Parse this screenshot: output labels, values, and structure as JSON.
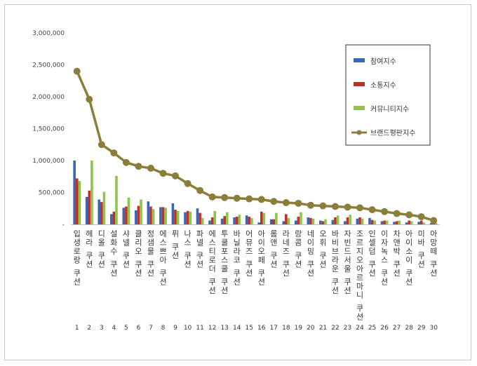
{
  "chart_data": {
    "type": "bar",
    "categories": [
      "입생로랑 쿠션",
      "헤라 쿠션",
      "디올 쿠션",
      "설화수 쿠션",
      "샤넬 쿠션",
      "클리오 쿠션",
      "정샘물 쿠션",
      "에스쁘아 쿠션",
      "퓌 쿠션",
      "나스 쿠션",
      "파넬 쿠션",
      "에스티로더 쿠션",
      "투쿨포스쿨 쿠션",
      "바닐라코 쿠션",
      "어뮤즈 쿠션",
      "아이오페 쿠션",
      "롬앤 쿠션",
      "라네즈 쿠션",
      "랑콤 쿠션",
      "네이밍 쿠션",
      "오휘 쿠션",
      "바비브라운 쿠션",
      "자빈드서울 쿠션",
      "조르지오아르마니 쿠션",
      "인셀덤 쿠션",
      "이자녹스 쿠션",
      "차앤박 쿠션",
      "아이소이 쿠션",
      "미바 쿠션",
      "아망떼 쿠션"
    ],
    "ranks": [
      "1",
      "2",
      "3",
      "4",
      "5",
      "6",
      "7",
      "8",
      "9",
      "10",
      "11",
      "12",
      "13",
      "14",
      "15",
      "16",
      "17",
      "18",
      "19",
      "20",
      "21",
      "22",
      "23",
      "24",
      "25",
      "26",
      "27",
      "28",
      "29",
      "30"
    ],
    "series": [
      {
        "name": "참여지수",
        "type": "bar",
        "color": "#3a66b4",
        "values": [
          1000000,
          430000,
          390000,
          160000,
          260000,
          220000,
          360000,
          270000,
          330000,
          190000,
          250000,
          60000,
          90000,
          110000,
          140000,
          30000,
          80000,
          50000,
          60000,
          110000,
          60000,
          70000,
          50000,
          90000,
          100000,
          50000,
          40000,
          30000,
          40000,
          20000
        ]
      },
      {
        "name": "소통지수",
        "type": "bar",
        "color": "#c0302b",
        "values": [
          720000,
          530000,
          350000,
          200000,
          280000,
          290000,
          280000,
          270000,
          230000,
          210000,
          180000,
          110000,
          130000,
          120000,
          120000,
          200000,
          80000,
          160000,
          120000,
          100000,
          50000,
          110000,
          110000,
          110000,
          70000,
          60000,
          50000,
          60000,
          60000,
          30000
        ]
      },
      {
        "name": "커뮤니티지수",
        "type": "bar",
        "color": "#8dc44a",
        "values": [
          680000,
          1000000,
          510000,
          760000,
          420000,
          390000,
          240000,
          260000,
          210000,
          200000,
          100000,
          210000,
          190000,
          150000,
          100000,
          180000,
          180000,
          100000,
          190000,
          90000,
          80000,
          140000,
          150000,
          90000,
          60000,
          60000,
          60000,
          50000,
          30000,
          20000
        ]
      },
      {
        "name": "브랜드평판지수",
        "type": "line",
        "color": "#8b7d3a",
        "values": [
          2400000,
          1960000,
          1250000,
          1120000,
          970000,
          910000,
          880000,
          800000,
          760000,
          640000,
          530000,
          430000,
          420000,
          410000,
          400000,
          390000,
          360000,
          340000,
          330000,
          300000,
          290000,
          280000,
          270000,
          260000,
          230000,
          200000,
          170000,
          150000,
          120000,
          60000
        ]
      }
    ],
    "ylim": [
      0,
      3000000
    ],
    "yticks": [
      "-",
      "500,000",
      "1,000,000",
      "1,500,000",
      "2,000,000",
      "2,500,000",
      "3,000,000"
    ],
    "grid": false,
    "legend": "top-right"
  }
}
